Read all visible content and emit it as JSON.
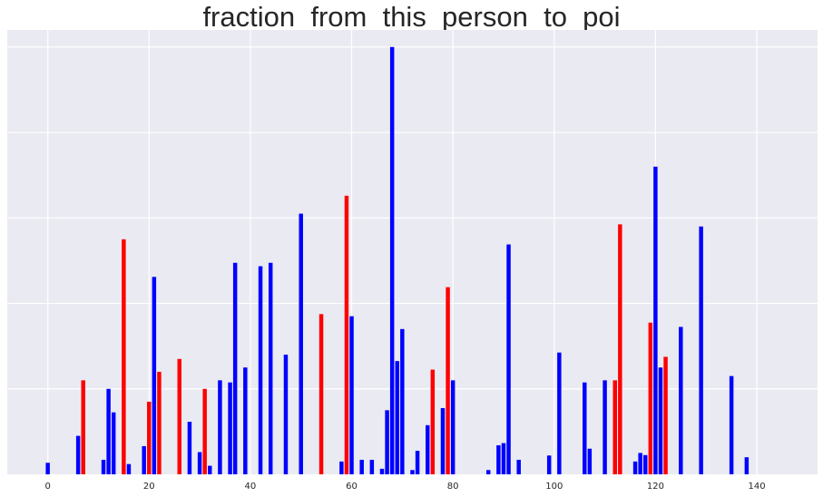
{
  "chart_data": {
    "type": "bar",
    "title": "fraction_from_this_person_to_poi",
    "xlabel": "",
    "ylabel": "",
    "xlim": [
      -8,
      152
    ],
    "ylim": [
      0,
      1.04
    ],
    "xticks": [
      0,
      20,
      40,
      60,
      80,
      100,
      120,
      140
    ],
    "yticks_shown": false,
    "grid": true,
    "colors": {
      "background": "#eaeaf2",
      "grid": "#ffffff",
      "non_poi": "#0000ff",
      "poi": "#ff0000"
    },
    "bars": [
      {
        "x": 0,
        "value": 0.027,
        "color": "blue"
      },
      {
        "x": 6,
        "value": 0.09,
        "color": "blue"
      },
      {
        "x": 7,
        "value": 0.22,
        "color": "red"
      },
      {
        "x": 11,
        "value": 0.034,
        "color": "blue"
      },
      {
        "x": 12,
        "value": 0.2,
        "color": "blue"
      },
      {
        "x": 13,
        "value": 0.145,
        "color": "blue"
      },
      {
        "x": 15,
        "value": 0.55,
        "color": "red"
      },
      {
        "x": 16,
        "value": 0.024,
        "color": "blue"
      },
      {
        "x": 19,
        "value": 0.066,
        "color": "blue"
      },
      {
        "x": 20,
        "value": 0.17,
        "color": "red"
      },
      {
        "x": 21,
        "value": 0.462,
        "color": "blue"
      },
      {
        "x": 22,
        "value": 0.24,
        "color": "red"
      },
      {
        "x": 26,
        "value": 0.27,
        "color": "red"
      },
      {
        "x": 28,
        "value": 0.123,
        "color": "blue"
      },
      {
        "x": 30,
        "value": 0.052,
        "color": "blue"
      },
      {
        "x": 31,
        "value": 0.2,
        "color": "red"
      },
      {
        "x": 32,
        "value": 0.02,
        "color": "blue"
      },
      {
        "x": 34,
        "value": 0.22,
        "color": "blue"
      },
      {
        "x": 36,
        "value": 0.215,
        "color": "blue"
      },
      {
        "x": 37,
        "value": 0.495,
        "color": "blue"
      },
      {
        "x": 39,
        "value": 0.25,
        "color": "blue"
      },
      {
        "x": 42,
        "value": 0.487,
        "color": "blue"
      },
      {
        "x": 44,
        "value": 0.495,
        "color": "blue"
      },
      {
        "x": 47,
        "value": 0.28,
        "color": "blue"
      },
      {
        "x": 50,
        "value": 0.61,
        "color": "blue"
      },
      {
        "x": 54,
        "value": 0.375,
        "color": "red"
      },
      {
        "x": 58,
        "value": 0.03,
        "color": "blue"
      },
      {
        "x": 59,
        "value": 0.652,
        "color": "red"
      },
      {
        "x": 60,
        "value": 0.37,
        "color": "blue"
      },
      {
        "x": 62,
        "value": 0.034,
        "color": "blue"
      },
      {
        "x": 64,
        "value": 0.034,
        "color": "blue"
      },
      {
        "x": 66,
        "value": 0.013,
        "color": "blue"
      },
      {
        "x": 67,
        "value": 0.15,
        "color": "blue"
      },
      {
        "x": 68,
        "value": 1.0,
        "color": "blue"
      },
      {
        "x": 69,
        "value": 0.265,
        "color": "blue"
      },
      {
        "x": 70,
        "value": 0.34,
        "color": "blue"
      },
      {
        "x": 72,
        "value": 0.01,
        "color": "blue"
      },
      {
        "x": 73,
        "value": 0.055,
        "color": "blue"
      },
      {
        "x": 75,
        "value": 0.115,
        "color": "blue"
      },
      {
        "x": 76,
        "value": 0.245,
        "color": "red"
      },
      {
        "x": 78,
        "value": 0.155,
        "color": "blue"
      },
      {
        "x": 79,
        "value": 0.438,
        "color": "red"
      },
      {
        "x": 80,
        "value": 0.22,
        "color": "blue"
      },
      {
        "x": 87,
        "value": 0.01,
        "color": "blue"
      },
      {
        "x": 89,
        "value": 0.068,
        "color": "blue"
      },
      {
        "x": 90,
        "value": 0.073,
        "color": "blue"
      },
      {
        "x": 91,
        "value": 0.538,
        "color": "blue"
      },
      {
        "x": 93,
        "value": 0.034,
        "color": "blue"
      },
      {
        "x": 99,
        "value": 0.044,
        "color": "blue"
      },
      {
        "x": 101,
        "value": 0.285,
        "color": "blue"
      },
      {
        "x": 106,
        "value": 0.215,
        "color": "blue"
      },
      {
        "x": 107,
        "value": 0.06,
        "color": "blue"
      },
      {
        "x": 110,
        "value": 0.22,
        "color": "blue"
      },
      {
        "x": 112,
        "value": 0.22,
        "color": "red"
      },
      {
        "x": 113,
        "value": 0.585,
        "color": "red"
      },
      {
        "x": 116,
        "value": 0.03,
        "color": "blue"
      },
      {
        "x": 117,
        "value": 0.05,
        "color": "blue"
      },
      {
        "x": 118,
        "value": 0.045,
        "color": "blue"
      },
      {
        "x": 119,
        "value": 0.355,
        "color": "red"
      },
      {
        "x": 120,
        "value": 0.72,
        "color": "blue"
      },
      {
        "x": 121,
        "value": 0.25,
        "color": "blue"
      },
      {
        "x": 122,
        "value": 0.275,
        "color": "red"
      },
      {
        "x": 125,
        "value": 0.345,
        "color": "blue"
      },
      {
        "x": 129,
        "value": 0.58,
        "color": "blue"
      },
      {
        "x": 135,
        "value": 0.23,
        "color": "blue"
      },
      {
        "x": 138,
        "value": 0.04,
        "color": "blue"
      }
    ]
  }
}
